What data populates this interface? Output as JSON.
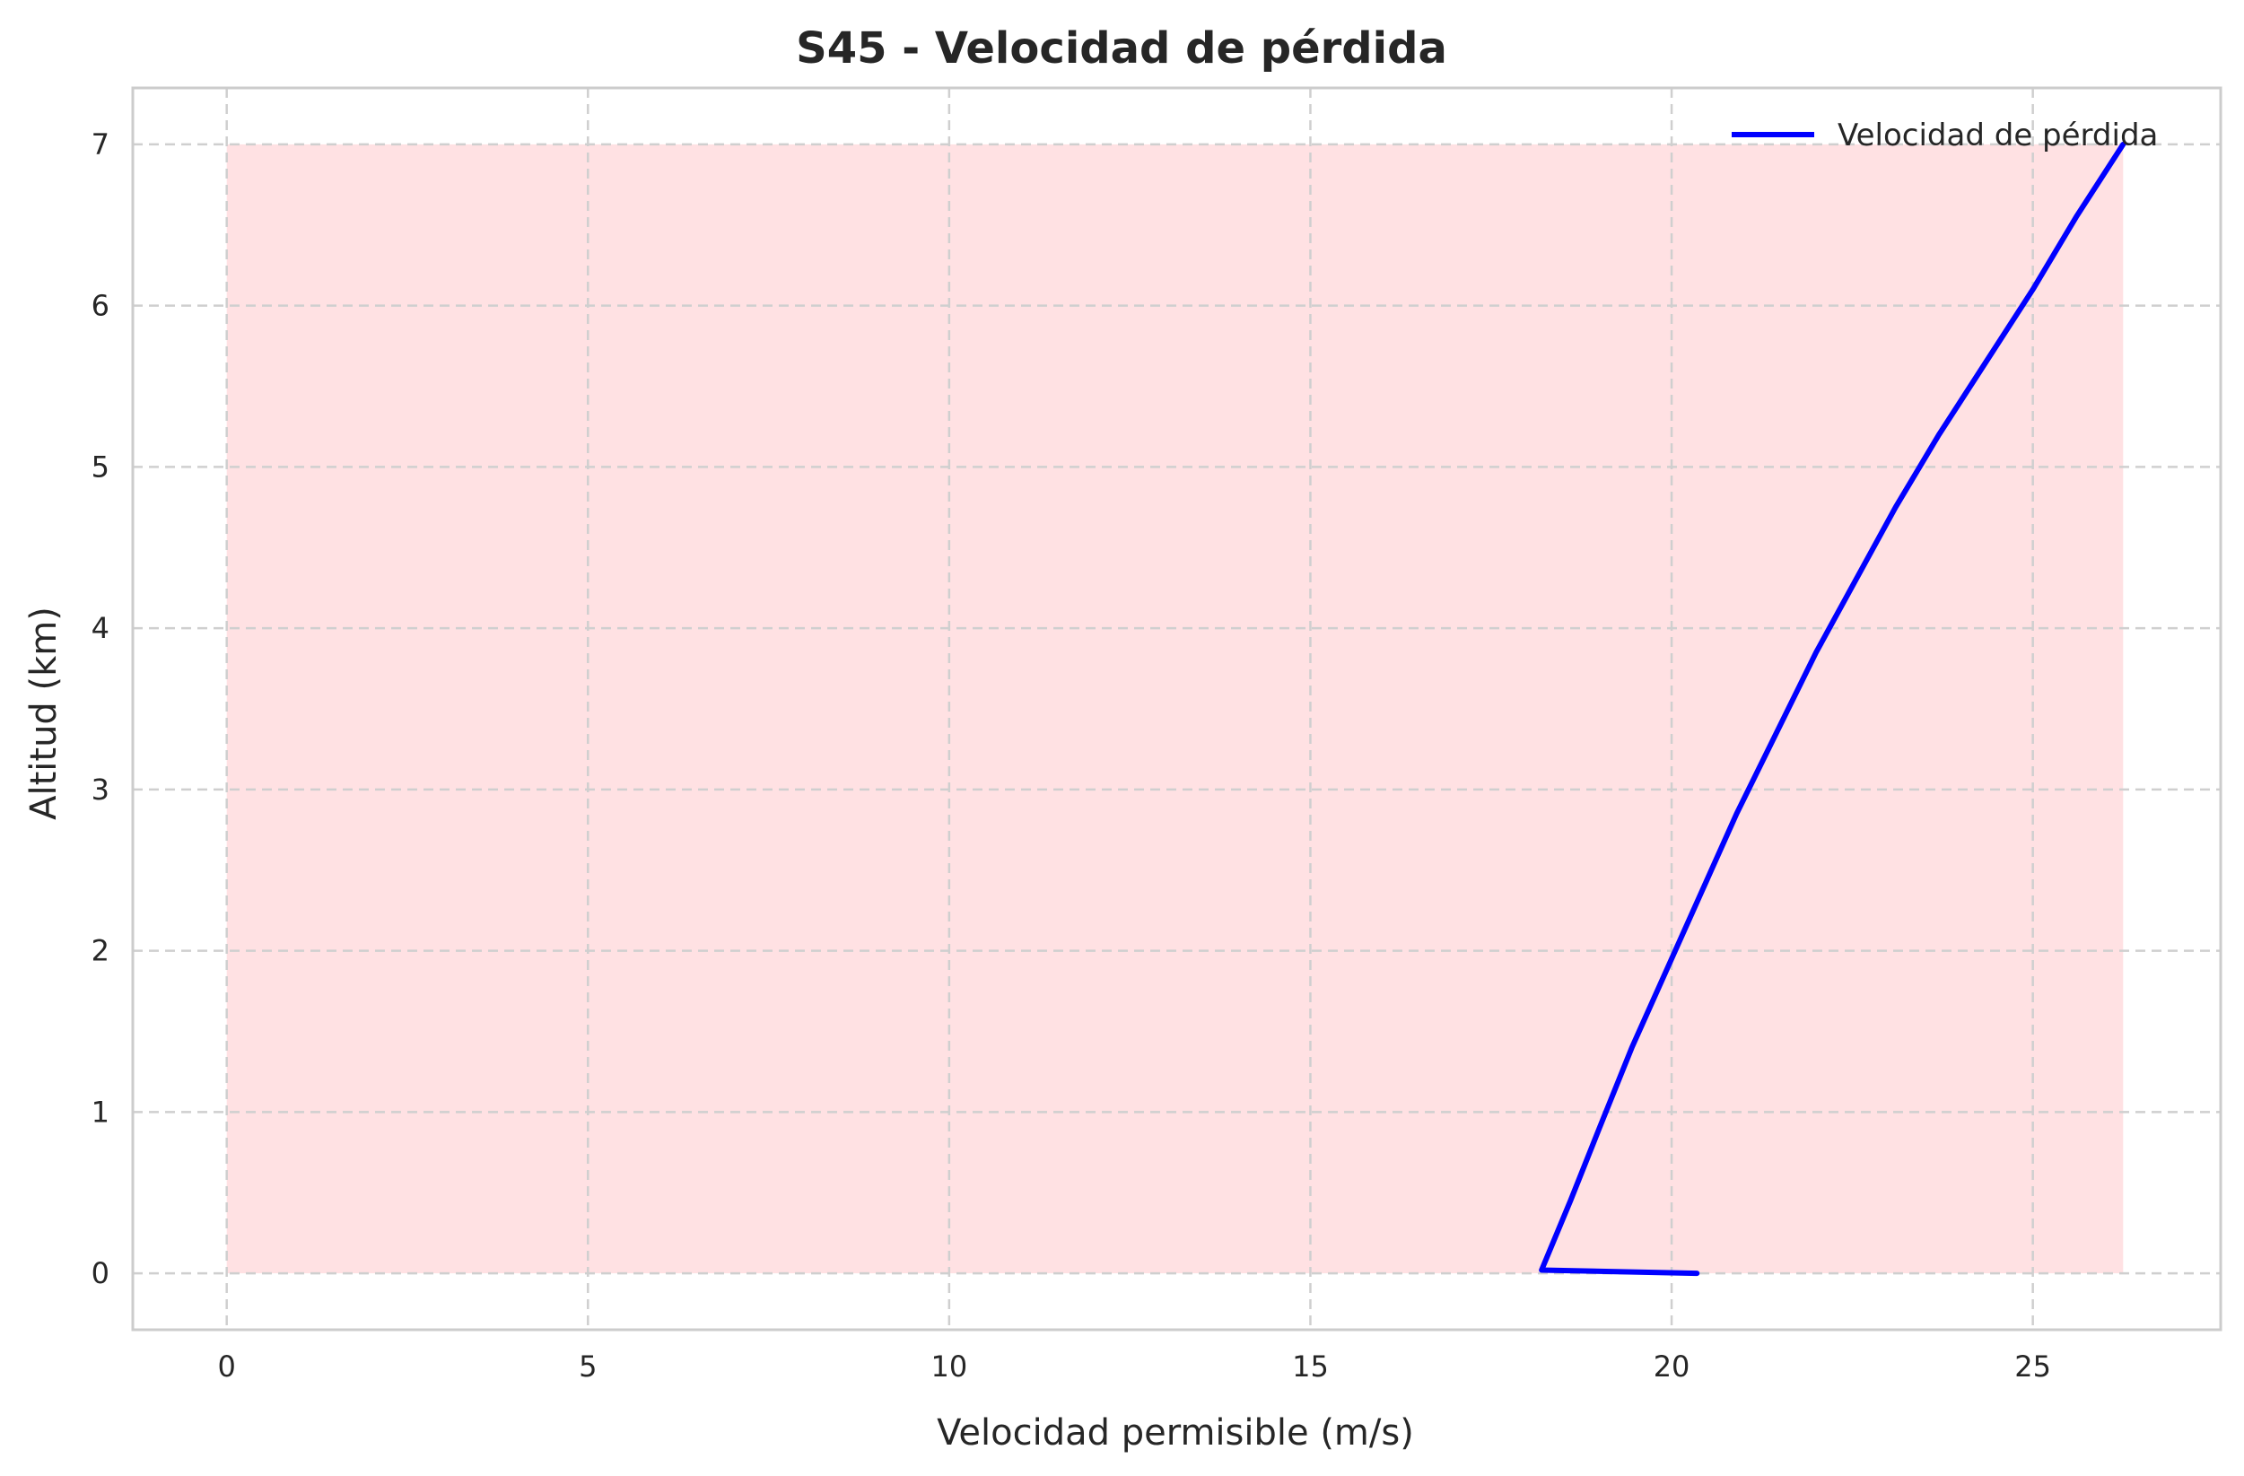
{
  "chart_data": {
    "type": "line",
    "title": "S45 - Velocidad de pérdida",
    "xlabel": "Velocidad permisible (m/s)",
    "ylabel": "Altitud (km)",
    "xlim": [
      -1.3,
      27.6
    ],
    "ylim": [
      -0.35,
      7.35
    ],
    "xticks": [
      0,
      5,
      10,
      15,
      20,
      25
    ],
    "yticks": [
      0,
      1,
      2,
      3,
      4,
      5,
      6,
      7
    ],
    "grid": true,
    "legend_position": "upper right",
    "series": [
      {
        "name": "Velocidad de pérdida",
        "color": "#0000ff",
        "x": [
          20.35,
          18.2,
          18.6,
          19.0,
          19.45,
          19.95,
          20.4,
          20.9,
          21.45,
          22.0,
          22.55,
          23.1,
          23.7,
          24.35,
          25.0,
          25.6,
          26.25
        ],
        "y": [
          0.0,
          0.02,
          0.45,
          0.9,
          1.4,
          1.9,
          2.35,
          2.85,
          3.35,
          3.85,
          4.3,
          4.75,
          5.2,
          5.65,
          6.1,
          6.55,
          7.0
        ]
      }
    ],
    "fill_region": {
      "color": "#ffe1e3",
      "x": [
        0,
        26.25
      ],
      "y": [
        0,
        7
      ]
    }
  }
}
